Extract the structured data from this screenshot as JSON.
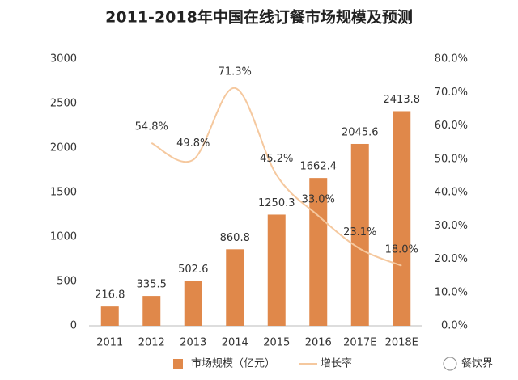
{
  "chart_data": {
    "type": "bar",
    "title": "2011-2018年中国在线订餐市场规模及预测",
    "categories": [
      "2011",
      "2012",
      "2013",
      "2014",
      "2015",
      "2016",
      "2017E",
      "2018E"
    ],
    "series": [
      {
        "name": "市场规模（亿元）",
        "color": "#e0884a",
        "values": [
          216.8,
          335.5,
          502.6,
          860.8,
          1250.3,
          1662.4,
          2045.6,
          2413.8
        ]
      },
      {
        "name": "增长率",
        "type": "line",
        "axis": "y2",
        "color": "#f5c89e",
        "values": [
          null,
          54.8,
          49.8,
          71.3,
          45.2,
          33.0,
          23.1,
          18.0
        ],
        "value_labels": [
          null,
          "54.8%",
          "49.8%",
          "71.3%",
          "45.2%",
          "33.0%",
          "23.1%",
          "18.0%"
        ]
      }
    ],
    "ylim": [
      0,
      3000
    ],
    "yticks": [
      0,
      500,
      1000,
      1500,
      2000,
      2500,
      3000
    ],
    "y2lim": [
      0,
      80
    ],
    "y2ticks": [
      {
        "value": 0,
        "label": "0.0%"
      },
      {
        "value": 10,
        "label": "10.0%"
      },
      {
        "value": 20,
        "label": "20.0%"
      },
      {
        "value": 30,
        "label": "30.0%"
      },
      {
        "value": 40,
        "label": "40.0%"
      },
      {
        "value": 50,
        "label": "50.0%"
      },
      {
        "value": 60,
        "label": "60.0%"
      },
      {
        "value": 70,
        "label": "70.0%"
      },
      {
        "value": 80,
        "label": "80.0%"
      }
    ],
    "grid": false,
    "legend": "bottom",
    "source_logo": "餐饮界"
  }
}
